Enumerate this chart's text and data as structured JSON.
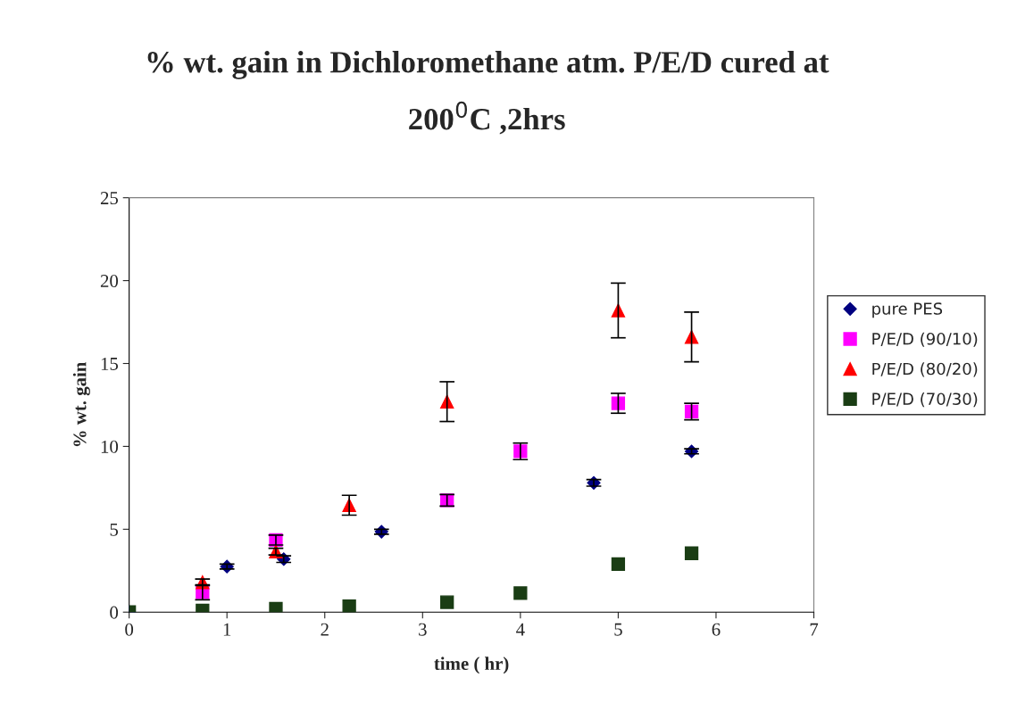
{
  "chart_data": {
    "type": "scatter",
    "title": "% wt. gain in Dichloromethane atm. P/E/D cured at\n200$^{0}$C ,2hrs",
    "xlabel": "time ( hr)",
    "ylabel": "% wt. gain",
    "xlim": [
      0,
      7
    ],
    "xticks": [
      0,
      1,
      2,
      3,
      4,
      5,
      6,
      7
    ],
    "ylim": [
      0,
      25
    ],
    "yticks": [
      0,
      5,
      10,
      15,
      20,
      25
    ],
    "grid": false,
    "legend": "right",
    "series": [
      {
        "name": "pure PES",
        "color": "#000080",
        "marker": "diamond",
        "x": [
          0,
          1,
          1.58,
          2.58,
          4.75,
          5.75
        ],
        "values": [
          0,
          2.75,
          3.2,
          4.85,
          7.8,
          9.7
        ],
        "errors": [
          null,
          0.15,
          0.2,
          0.15,
          0.2,
          0.15
        ]
      },
      {
        "name": "P/E/D (90/10)",
        "color": "#ff00ff",
        "marker": "square",
        "x": [
          0.75,
          1.5,
          3.25,
          4,
          5,
          5.75
        ],
        "values": [
          1.2,
          4.35,
          6.75,
          9.7,
          12.6,
          12.1
        ],
        "errors": [
          0.45,
          0.3,
          0.35,
          0.5,
          0.6,
          0.5
        ]
      },
      {
        "name": "P/E/D (80/20)",
        "color": "#ff0000",
        "marker": "triangle",
        "x": [
          0.75,
          1.5,
          2.25,
          3.25,
          5,
          5.75
        ],
        "values": [
          1.8,
          3.65,
          6.45,
          12.7,
          18.2,
          16.6
        ],
        "errors": [
          0.2,
          0.2,
          0.6,
          1.2,
          1.65,
          1.5
        ]
      },
      {
        "name": "P/E/D (70/30)",
        "color": "#1a3d14",
        "marker": "square",
        "x": [
          0,
          0.75,
          1.5,
          2.25,
          3.25,
          4,
          5,
          5.75
        ],
        "values": [
          0,
          0.1,
          0.2,
          0.35,
          0.6,
          1.15,
          2.9,
          3.55
        ]
      }
    ]
  }
}
